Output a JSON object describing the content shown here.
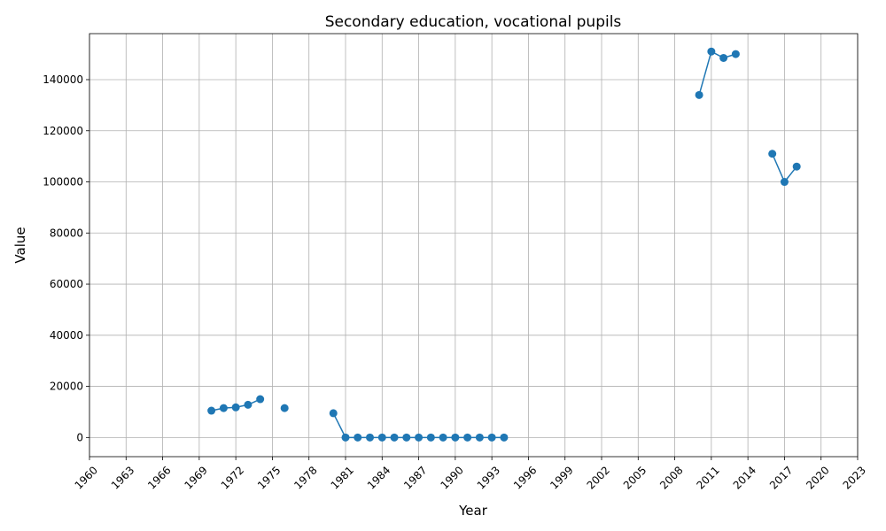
{
  "chart_data": {
    "type": "line",
    "title": "Secondary education, vocational pupils",
    "xlabel": "Year",
    "ylabel": "Value",
    "xlim": [
      1960,
      2023
    ],
    "ylim": [
      -7500,
      158000
    ],
    "x_ticks": [
      1960,
      1963,
      1966,
      1969,
      1972,
      1975,
      1978,
      1981,
      1984,
      1987,
      1990,
      1993,
      1996,
      1999,
      2002,
      2005,
      2008,
      2011,
      2014,
      2017,
      2020,
      2023
    ],
    "y_ticks": [
      0,
      20000,
      40000,
      60000,
      80000,
      100000,
      120000,
      140000
    ],
    "grid": true,
    "legend": "none",
    "series_color": "#1f77b4",
    "series": [
      {
        "x": [
          1970,
          1971,
          1972,
          1973,
          1974,
          1975,
          1976,
          1977,
          1978,
          1979,
          1980,
          1981,
          1982,
          1983,
          1984,
          1985,
          1986,
          1987,
          1988,
          1989,
          1990,
          1991,
          1992,
          1993,
          1994,
          1995,
          1996,
          1997,
          1998,
          1999,
          2000,
          2001,
          2002,
          2003,
          2004,
          2005,
          2006,
          2007,
          2008,
          2009,
          2010,
          2011,
          2012,
          2013,
          2014,
          2015,
          2016,
          2017,
          2018
        ],
        "y": [
          10500,
          11500,
          11800,
          12800,
          15000,
          null,
          11500,
          null,
          null,
          null,
          9500,
          0,
          0,
          0,
          0,
          0,
          0,
          0,
          0,
          0,
          0,
          0,
          0,
          0,
          0,
          null,
          null,
          null,
          null,
          null,
          null,
          null,
          null,
          null,
          null,
          null,
          null,
          null,
          null,
          null,
          134000,
          151000,
          148500,
          150000,
          null,
          null,
          111000,
          100000,
          106000
        ]
      }
    ]
  }
}
